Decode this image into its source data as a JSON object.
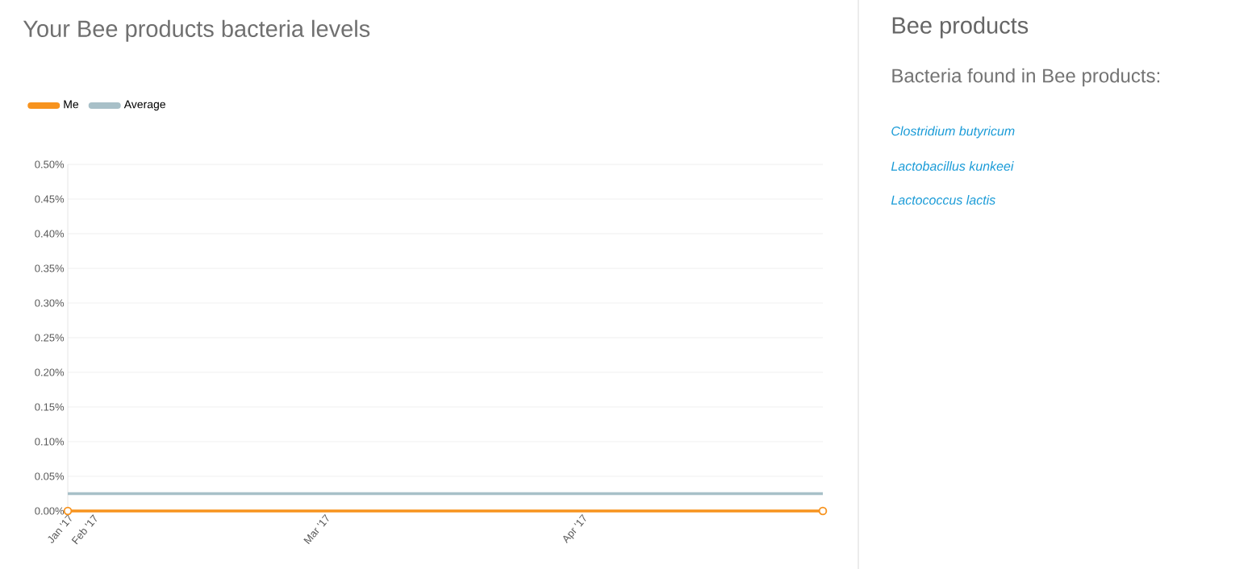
{
  "chart_data": [
    {
      "type": "line",
      "title": "Your Bee products bacteria levels",
      "xlim": [
        "2017-01-29",
        "2017-04-30"
      ],
      "xticks": [
        {
          "value": "2017-01-29",
          "label": "Jan '17"
        },
        {
          "value": "2017-02-01",
          "label": "Feb '17"
        },
        {
          "value": "2017-03-01",
          "label": "Mar '17"
        },
        {
          "value": "2017-04-01",
          "label": "Apr '17"
        }
      ],
      "ylim": [
        0,
        0.5
      ],
      "yticks": [
        {
          "value": 0,
          "label": "0.00%"
        },
        {
          "value": 0.05,
          "label": "0.05%"
        },
        {
          "value": 0.1,
          "label": "0.10%"
        },
        {
          "value": 0.15,
          "label": "0.15%"
        },
        {
          "value": 0.2,
          "label": "0.20%"
        },
        {
          "value": 0.25,
          "label": "0.25%"
        },
        {
          "value": 0.3,
          "label": "0.30%"
        },
        {
          "value": 0.35,
          "label": "0.35%"
        },
        {
          "value": 0.4,
          "label": "0.40%"
        },
        {
          "value": 0.45,
          "label": "0.45%"
        },
        {
          "value": 0.5,
          "label": "0.50%"
        }
      ],
      "grid": "y",
      "legend": "top left",
      "series": [
        {
          "name": "Me",
          "color": "#f7931e",
          "marker": "circle",
          "x": [
            "2017-01-29",
            "2017-04-30"
          ],
          "values": [
            0,
            0
          ]
        },
        {
          "name": "Average",
          "color": "#a8c0c8",
          "x": [
            "2017-01-29",
            "2017-04-30"
          ],
          "values": [
            0.025,
            0.025
          ]
        }
      ]
    },
    {
      "type": "other",
      "title": "Bee products",
      "subtitle": "Bacteria found in Bee products:",
      "annotations": [
        "Clostridium butyricum",
        "Lactobacillus kunkeei",
        "Lactococcus lactis"
      ]
    }
  ]
}
